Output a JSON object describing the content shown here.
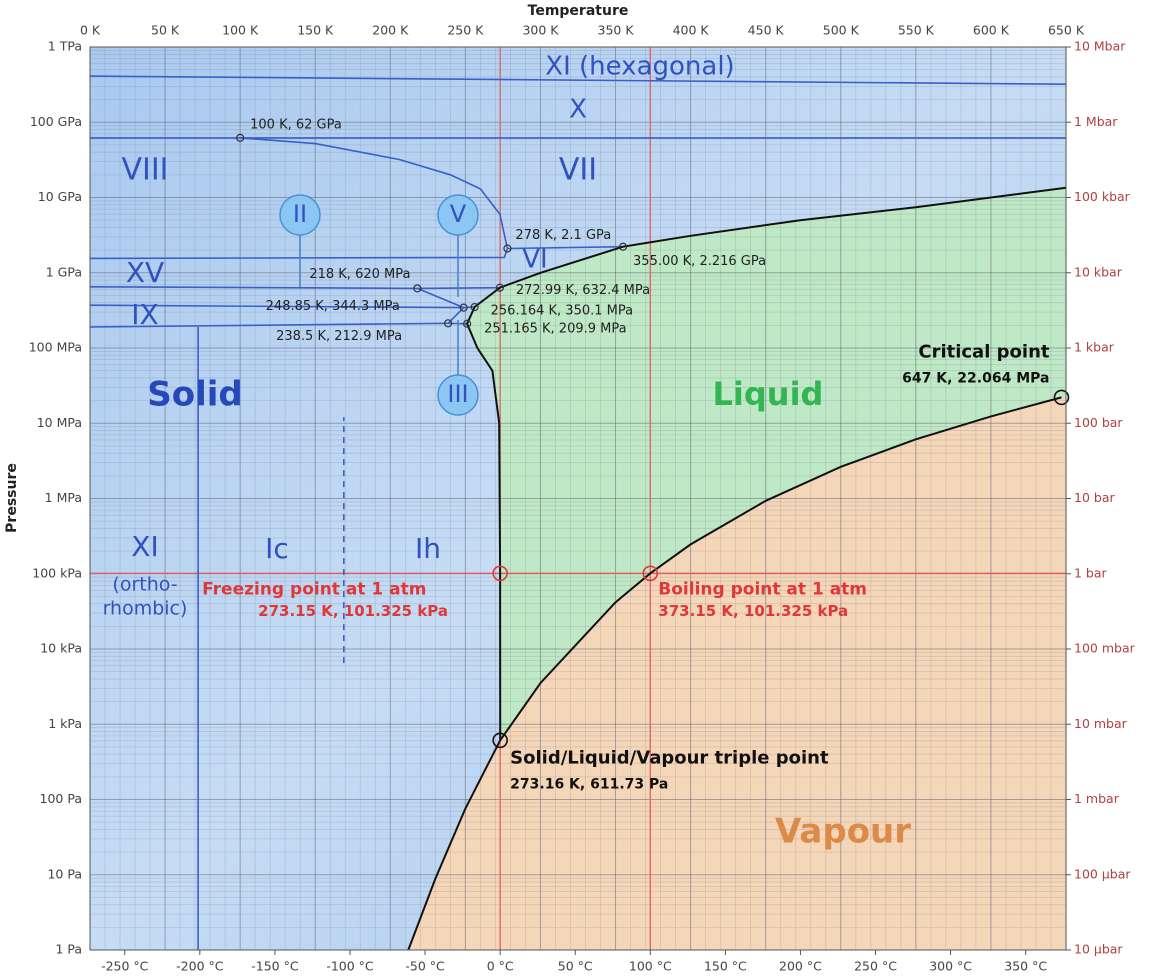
{
  "chart_data": {
    "type": "line",
    "x_label": "Temperature",
    "y_label": "Pressure",
    "xlim": [
      0,
      650
    ],
    "xticks": [
      {
        "value": 0,
        "label": "0 K"
      },
      {
        "value": 50,
        "label": "50 K"
      },
      {
        "value": 100,
        "label": "100 K"
      },
      {
        "value": 150,
        "label": "150 K"
      },
      {
        "value": 200,
        "label": "200 K"
      },
      {
        "value": 250,
        "label": "250 K"
      },
      {
        "value": 300,
        "label": "300 K"
      },
      {
        "value": 350,
        "label": "350 K"
      },
      {
        "value": 400,
        "label": "400 K"
      },
      {
        "value": 450,
        "label": "450 K"
      },
      {
        "value": 500,
        "label": "500 K"
      },
      {
        "value": 550,
        "label": "550 K"
      },
      {
        "value": 600,
        "label": "600 K"
      },
      {
        "value": 650,
        "label": "650 K"
      }
    ],
    "x2lim": [
      -273.15,
      376.85
    ],
    "x2ticks": [
      {
        "value": -250,
        "label": "-250 °C"
      },
      {
        "value": -200,
        "label": "-200 °C"
      },
      {
        "value": -150,
        "label": "-150 °C"
      },
      {
        "value": -100,
        "label": "-100 °C"
      },
      {
        "value": -50,
        "label": "-50 °C"
      },
      {
        "value": 0,
        "label": "0 °C"
      },
      {
        "value": 50,
        "label": "50 °C"
      },
      {
        "value": 100,
        "label": "100 °C"
      },
      {
        "value": 150,
        "label": "150 °C"
      },
      {
        "value": 200,
        "label": "200 °C"
      },
      {
        "value": 250,
        "label": "250 °C"
      },
      {
        "value": 300,
        "label": "300 °C"
      },
      {
        "value": 350,
        "label": "350 °C"
      }
    ],
    "ylog": true,
    "ylim": [
      1,
      1000000000000
    ],
    "yticks": [
      {
        "value": 1,
        "label": "1 Pa"
      },
      {
        "value": 10,
        "label": "10 Pa"
      },
      {
        "value": 100,
        "label": "100 Pa"
      },
      {
        "value": 1000,
        "label": "1 kPa"
      },
      {
        "value": 10000,
        "label": "10 kPa"
      },
      {
        "value": 100000,
        "label": "100 kPa"
      },
      {
        "value": 1000000,
        "label": "1 MPa"
      },
      {
        "value": 10000000,
        "label": "10 MPa"
      },
      {
        "value": 100000000,
        "label": "100 MPa"
      },
      {
        "value": 1000000000,
        "label": "1 GPa"
      },
      {
        "value": 10000000000,
        "label": "10 GPa"
      },
      {
        "value": 100000000000,
        "label": "100 GPa"
      },
      {
        "value": 1000000000000,
        "label": "1 TPa"
      }
    ],
    "y2lim": [
      1e-05,
      10000000
    ],
    "y2ticks": [
      {
        "value": 1e-05,
        "label": "10 µbar"
      },
      {
        "value": 0.0001,
        "label": "100 µbar"
      },
      {
        "value": 0.001,
        "label": "1 mbar"
      },
      {
        "value": 0.01,
        "label": "10 mbar"
      },
      {
        "value": 0.1,
        "label": "100 mbar"
      },
      {
        "value": 1,
        "label": "1 bar"
      },
      {
        "value": 10,
        "label": "10 bar"
      },
      {
        "value": 100,
        "label": "100 bar"
      },
      {
        "value": 1000,
        "label": "1 kbar"
      },
      {
        "value": 10000,
        "label": "10 kbar"
      },
      {
        "value": 100000,
        "label": "100 kbar"
      },
      {
        "value": 1000000,
        "label": "1 Mbar"
      },
      {
        "value": 10000000,
        "label": "10 Mbar"
      }
    ],
    "grid": true,
    "minor_grid": true,
    "curves": [
      {
        "color": "#111111",
        "x": [
          273.16,
          300,
          350,
          373.15,
          400,
          450,
          500,
          550,
          600,
          647
        ],
        "y": [
          611.73,
          3537,
          41682,
          101325,
          245770,
          932000,
          2639000,
          6117000,
          12345000,
          22064000
        ]
      },
      {
        "color": "#111111",
        "x": [
          212,
          230,
          250,
          273.16
        ],
        "y": [
          1,
          8.9,
          76,
          611.73
        ]
      },
      {
        "color": "#111111",
        "x": [
          273.16,
          273.15,
          272.5,
          268,
          258,
          251.165,
          256.164,
          272.99,
          300,
          355,
          400,
          473,
          550,
          650
        ],
        "y": [
          611.73,
          101325,
          10000000,
          50000000,
          100000000,
          209900000,
          350100000,
          632400000,
          1000000000,
          2216000000,
          3100000000,
          5000000000,
          7400000000,
          13500000000
        ]
      }
    ],
    "boundaries": [
      {
        "color": "#3a5fc8",
        "x": [
          0,
          650
        ],
        "y": [
          410000000000,
          320000000000
        ]
      },
      {
        "color": "#3a5fc8",
        "x": [
          0,
          650
        ],
        "y": [
          62000000000,
          62000000000
        ]
      },
      {
        "color": "#3a5fc8",
        "x": [
          100,
          150,
          206,
          240,
          260,
          273,
          278
        ],
        "y": [
          62000000000,
          52000000000,
          32000000000,
          20000000000,
          13000000000,
          6000000000,
          2100000000
        ]
      },
      {
        "color": "#3a5fc8",
        "x": [
          278,
          355
        ],
        "y": [
          2100000000,
          2216000000
        ]
      },
      {
        "color": "#3a5fc8",
        "x": [
          0,
          276,
          278
        ],
        "y": [
          1550000000,
          1600000000,
          2100000000
        ]
      },
      {
        "color": "#3a5fc8",
        "x": [
          0,
          218
        ],
        "y": [
          650000000,
          620000000
        ]
      },
      {
        "color": "#3a5fc8",
        "x": [
          218,
          272.99
        ],
        "y": [
          620000000,
          632400000
        ]
      },
      {
        "color": "#3a5fc8",
        "x": [
          218,
          248.85
        ],
        "y": [
          620000000,
          344300000
        ]
      },
      {
        "color": "#3a5fc8",
        "x": [
          0,
          248.85
        ],
        "y": [
          370000000,
          344300000
        ]
      },
      {
        "color": "#3a5fc8",
        "x": [
          248.85,
          256.164
        ],
        "y": [
          344300000,
          350100000
        ]
      },
      {
        "color": "#3a5fc8",
        "x": [
          238.5,
          248.85
        ],
        "y": [
          212900000,
          344300000
        ]
      },
      {
        "color": "#3a5fc8",
        "x": [
          0,
          238.5
        ],
        "y": [
          190000000,
          212900000
        ]
      },
      {
        "color": "#3a5fc8",
        "x": [
          238.5,
          251.165
        ],
        "y": [
          212900000,
          209900000
        ]
      },
      {
        "color": "#3a5fc8",
        "x": [
          72,
          72
        ],
        "y": [
          1,
          190000000
        ]
      },
      {
        "color": "#3a5fc8",
        "dashed": true,
        "x": [
          169,
          169
        ],
        "y": [
          6500,
          12000000
        ]
      }
    ],
    "reference_lines": {
      "color": "#e06060",
      "x": [
        273.15,
        373.15
      ],
      "y": [
        101325
      ]
    },
    "points": [
      {
        "label": "100 K, 62 GPa",
        "x": 100,
        "y": 62000000000
      },
      {
        "label": "278 K, 2.1 GPa",
        "x": 278,
        "y": 2100000000
      },
      {
        "label": "355.00 K, 2.216 GPa",
        "x": 355,
        "y": 2216000000
      },
      {
        "label": "218 K, 620 MPa",
        "x": 218,
        "y": 620000000
      },
      {
        "label": "272.99 K, 632.4 MPa",
        "x": 272.99,
        "y": 632400000
      },
      {
        "label": "248.85 K, 344.3 MPa",
        "x": 248.85,
        "y": 344300000
      },
      {
        "label": "256.164 K, 350.1 MPa",
        "x": 256.164,
        "y": 350100000
      },
      {
        "label": "238.5 K, 212.9 MPa",
        "x": 238.5,
        "y": 212900000
      },
      {
        "label": "251.165 K, 209.9 MPa",
        "x": 251.165,
        "y": 209900000
      },
      {
        "name": "Critical point",
        "label": "647 K, 22.064 MPa",
        "x": 647,
        "y": 22064000
      },
      {
        "name": "Freezing point at 1 atm",
        "label": "273.15 K, 101.325 kPa",
        "x": 273.15,
        "y": 101325
      },
      {
        "name": "Boiling point at 1 atm",
        "label": "373.15 K, 101.325 kPa",
        "x": 373.15,
        "y": 101325
      },
      {
        "name": "Solid/Liquid/Vapour triple point",
        "label": "273.16 K, 611.73 Pa",
        "x": 273.16,
        "y": 611.73
      }
    ],
    "region_labels": [
      "Solid",
      "Liquid",
      "Vapour",
      "XI (hexagonal)",
      "X",
      "VIII",
      "VII",
      "VI",
      "XV",
      "IX",
      "II",
      "V",
      "III",
      "XI",
      "(ortho-",
      "rhombic)",
      "Ic",
      "Ih"
    ]
  }
}
